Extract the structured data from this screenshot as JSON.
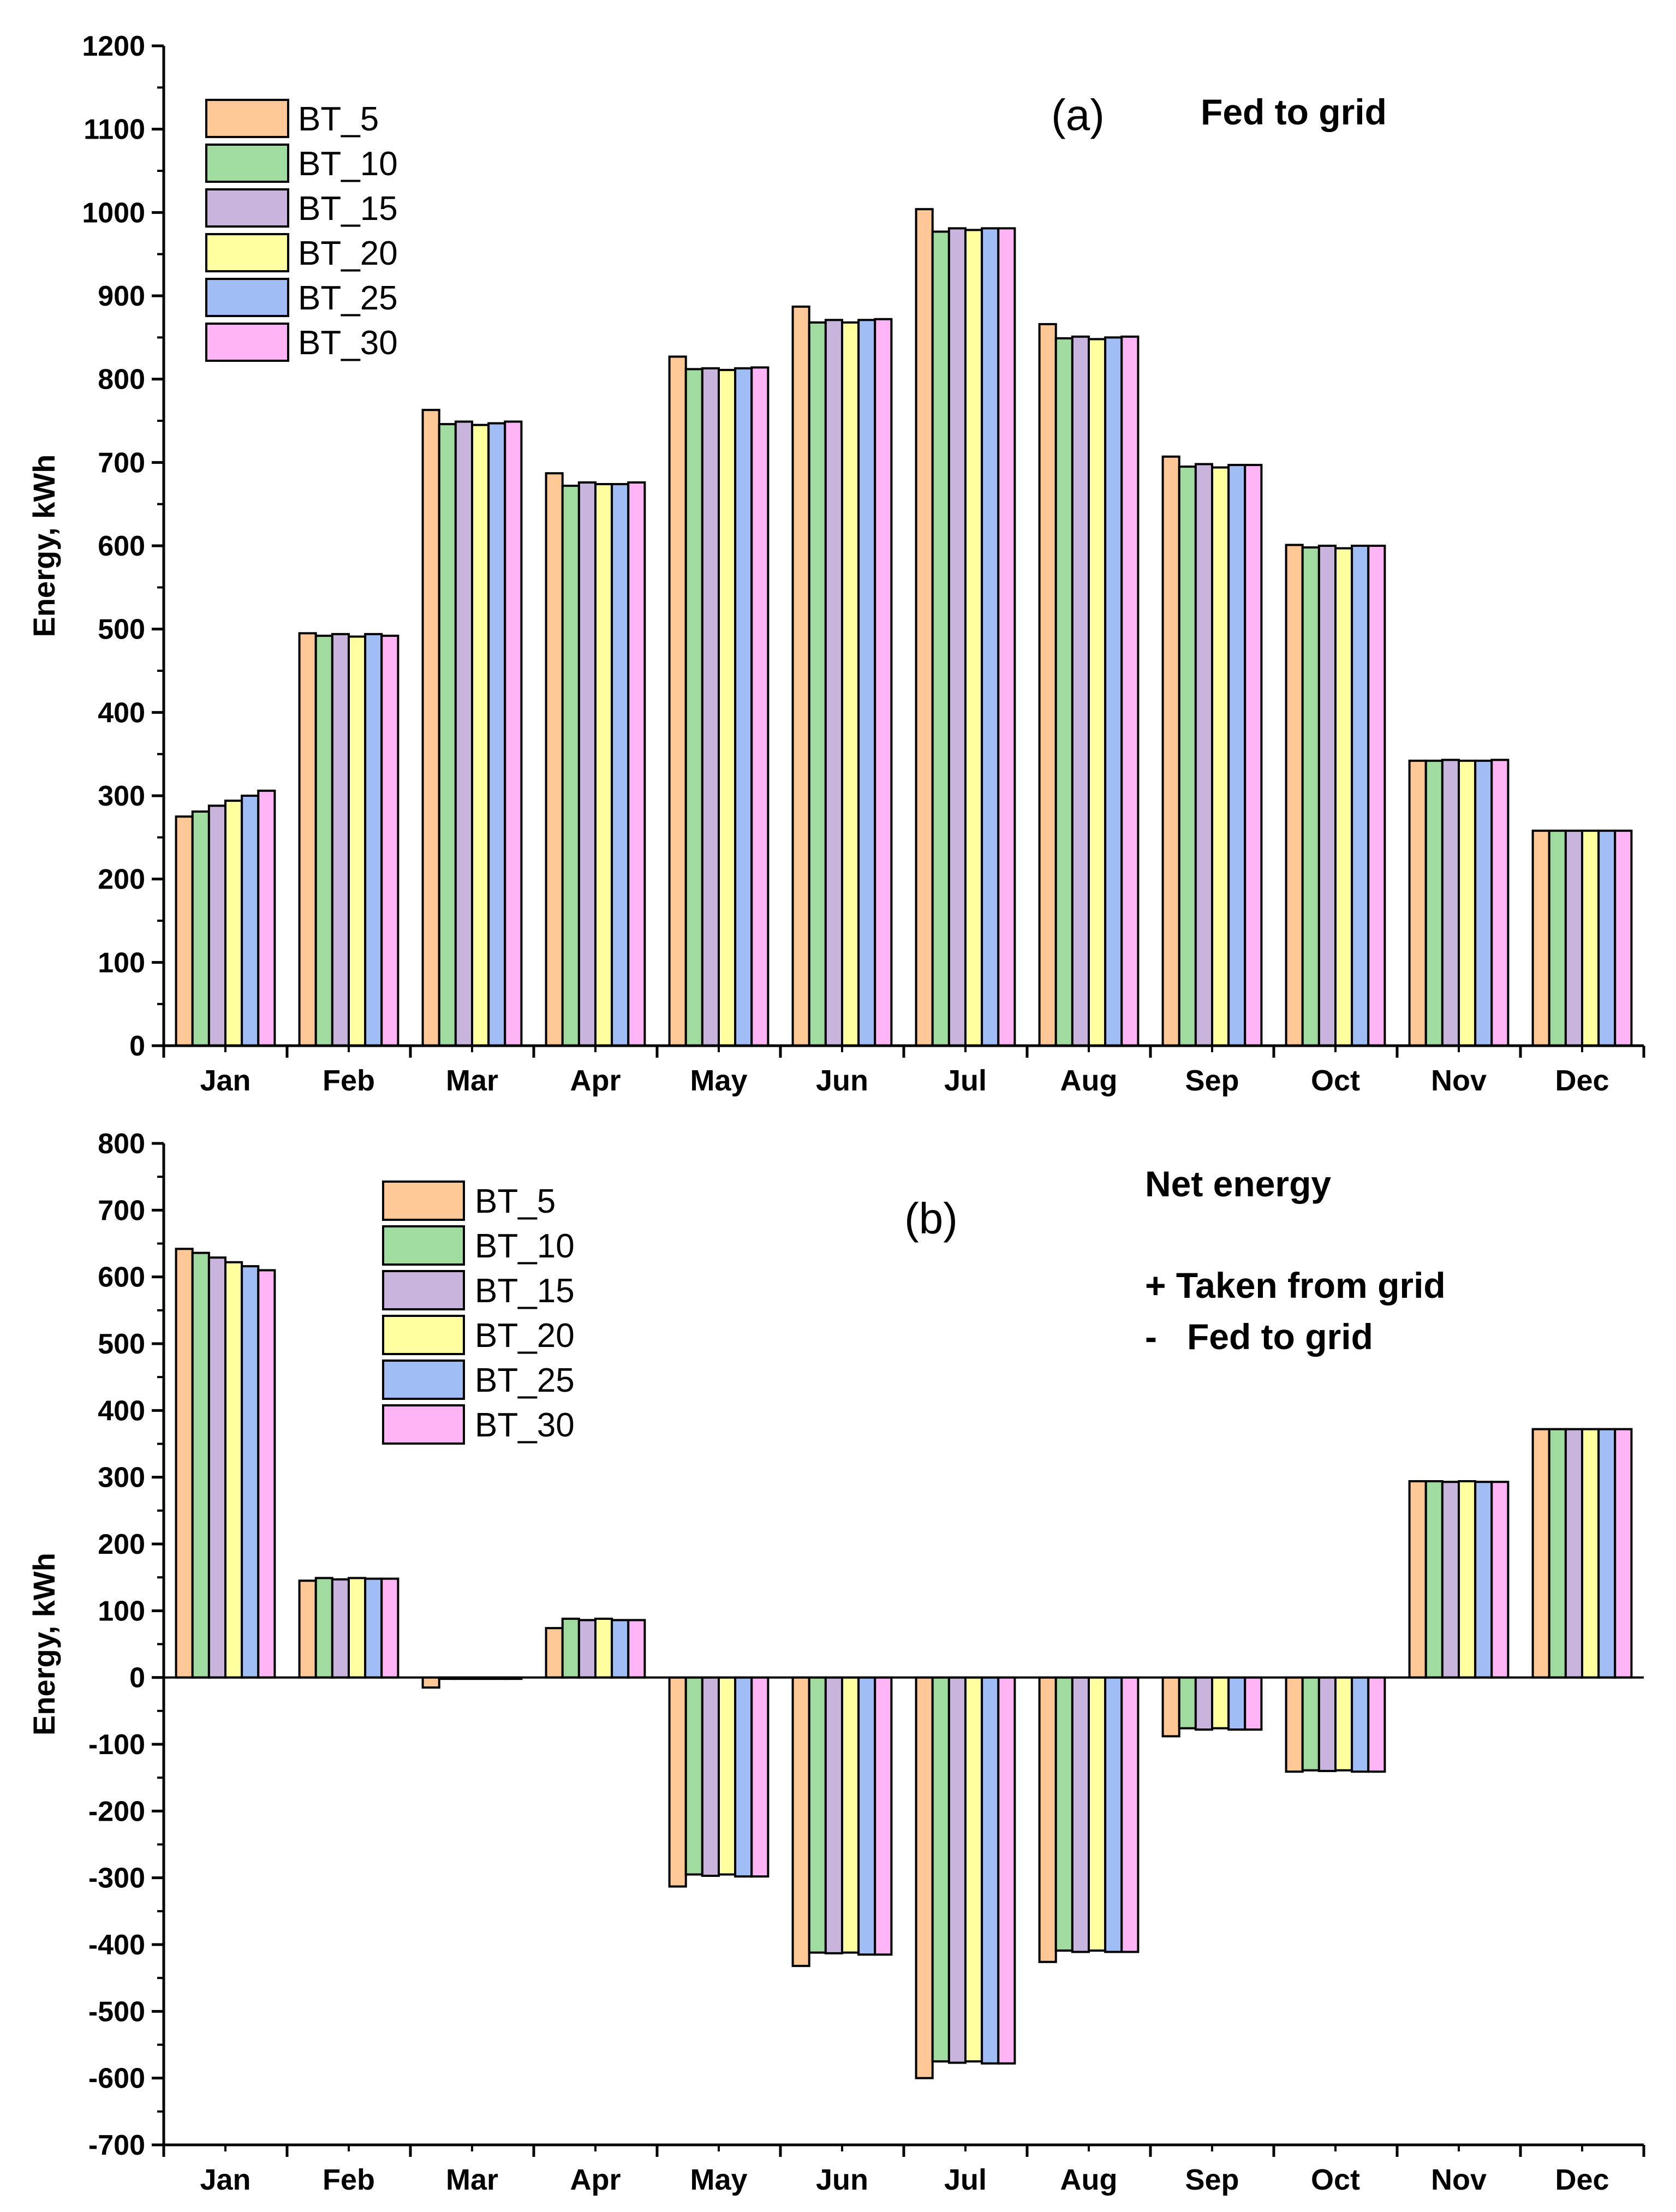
{
  "chart_data": [
    {
      "type": "bar",
      "panel_label": "(a)",
      "title": "Fed to grid",
      "annotations": [],
      "xlabel": "",
      "ylabel": "Energy, kWh",
      "ylim": [
        0,
        1200
      ],
      "yticks": [
        0,
        100,
        200,
        300,
        400,
        500,
        600,
        700,
        800,
        900,
        1000,
        1100,
        1200
      ],
      "categories": [
        "Jan",
        "Feb",
        "Mar",
        "Apr",
        "May",
        "Jun",
        "Jul",
        "Aug",
        "Sep",
        "Oct",
        "Nov",
        "Dec"
      ],
      "legend_position": "top-left",
      "series": [
        {
          "name": "BT_5",
          "color": "#FFC896",
          "values": [
            275,
            495,
            763,
            687,
            827,
            887,
            1004,
            866,
            707,
            601,
            342,
            258
          ]
        },
        {
          "name": "BT_10",
          "color": "#A0DCA0",
          "values": [
            281,
            492,
            746,
            672,
            812,
            868,
            977,
            849,
            695,
            598,
            342,
            258
          ]
        },
        {
          "name": "BT_15",
          "color": "#C8B4DC",
          "values": [
            288,
            494,
            749,
            676,
            813,
            871,
            981,
            851,
            698,
            600,
            343,
            258
          ]
        },
        {
          "name": "BT_20",
          "color": "#FFFFA0",
          "values": [
            294,
            491,
            745,
            674,
            811,
            868,
            979,
            848,
            694,
            597,
            342,
            258
          ]
        },
        {
          "name": "BT_25",
          "color": "#A0BEF5",
          "values": [
            300,
            494,
            747,
            674,
            813,
            871,
            981,
            850,
            697,
            600,
            342,
            258
          ]
        },
        {
          "name": "BT_30",
          "color": "#FFB4F5",
          "values": [
            306,
            492,
            749,
            676,
            814,
            872,
            981,
            851,
            697,
            600,
            343,
            258
          ]
        }
      ]
    },
    {
      "type": "bar",
      "panel_label": "(b)",
      "title": "Net energy",
      "annotations": [
        "+ Taken from grid",
        "-   Fed to grid"
      ],
      "xlabel": "",
      "ylabel": "Energy, kWh",
      "ylim": [
        -700,
        800
      ],
      "yticks": [
        -700,
        -600,
        -500,
        -400,
        -300,
        -200,
        -100,
        0,
        100,
        200,
        300,
        400,
        500,
        600,
        700,
        800
      ],
      "categories": [
        "Jan",
        "Feb",
        "Mar",
        "Apr",
        "May",
        "Jun",
        "Jul",
        "Aug",
        "Sep",
        "Oct",
        "Nov",
        "Dec"
      ],
      "legend_position": "top-left",
      "series": [
        {
          "name": "BT_5",
          "color": "#FFC896",
          "values": [
            642,
            145,
            -15,
            74,
            -313,
            -432,
            -600,
            -426,
            -88,
            -141,
            294,
            372
          ]
        },
        {
          "name": "BT_10",
          "color": "#A0DCA0",
          "values": [
            636,
            149,
            -2,
            88,
            -295,
            -412,
            -575,
            -409,
            -76,
            -139,
            294,
            372
          ]
        },
        {
          "name": "BT_15",
          "color": "#C8B4DC",
          "values": [
            629,
            147,
            -2,
            86,
            -297,
            -413,
            -577,
            -411,
            -78,
            -140,
            293,
            372
          ]
        },
        {
          "name": "BT_20",
          "color": "#FFFFA0",
          "values": [
            622,
            149,
            -2,
            88,
            -295,
            -412,
            -575,
            -409,
            -76,
            -139,
            294,
            372
          ]
        },
        {
          "name": "BT_25",
          "color": "#A0BEF5",
          "values": [
            616,
            148,
            -2,
            86,
            -298,
            -415,
            -578,
            -411,
            -78,
            -141,
            293,
            372
          ]
        },
        {
          "name": "BT_30",
          "color": "#FFB4F5",
          "values": [
            610,
            148,
            -2,
            86,
            -298,
            -415,
            -578,
            -411,
            -78,
            -141,
            293,
            372
          ]
        }
      ]
    }
  ]
}
